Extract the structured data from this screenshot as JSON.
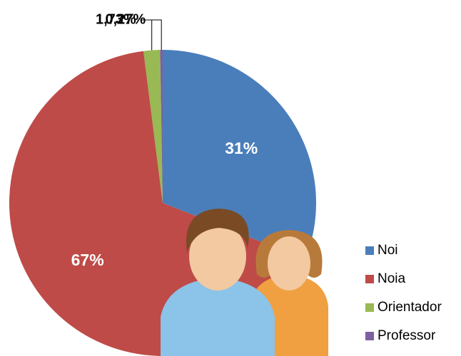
{
  "chart_data": {
    "type": "pie",
    "categories": [
      "Noi",
      "Noia",
      "Orientador",
      "Professor"
    ],
    "values": [
      31,
      67,
      1.73,
      0.27
    ],
    "value_labels": [
      "31%",
      "67%",
      "1,73%",
      "0,27%"
    ],
    "colors": [
      "#4a7ebb",
      "#be4b48",
      "#98b954",
      "#7d60a0"
    ],
    "legend": "right"
  }
}
